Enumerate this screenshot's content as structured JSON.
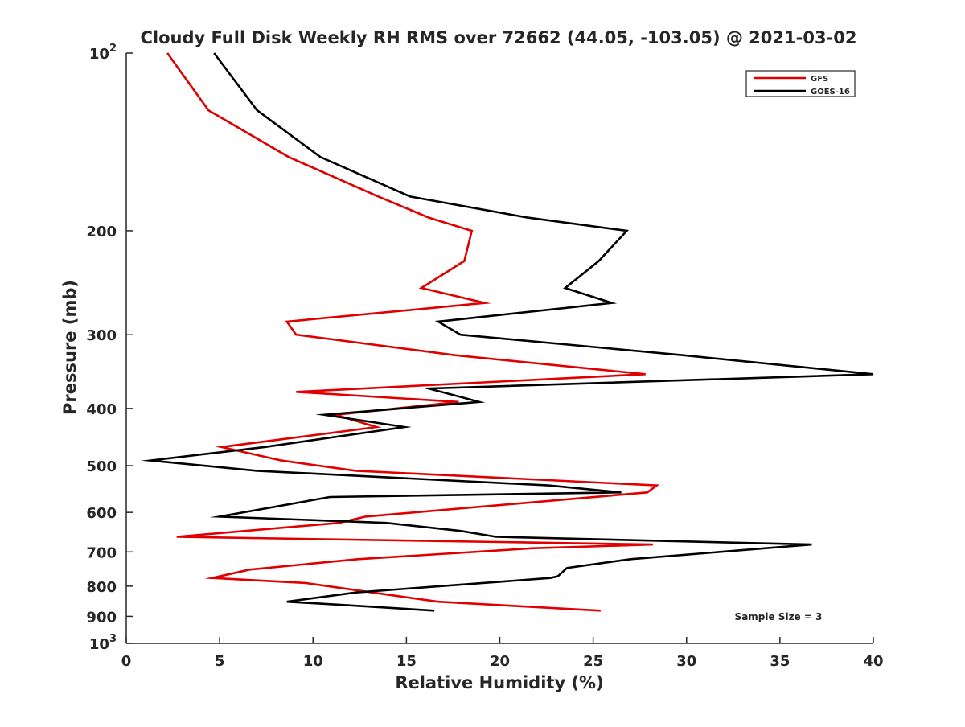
{
  "chart_data": {
    "type": "line",
    "title": "Cloudy Full Disk Weekly RH RMS over 72662 (44.05, -103.05) @ 2021-03-02",
    "xlabel": "Relative Humidity (%)",
    "ylabel": "Pressure (mb)",
    "xlim": [
      0,
      40
    ],
    "ylim": [
      100,
      1000
    ],
    "y_scale": "log",
    "y_reversed": true,
    "grid": false,
    "legend_position": "top-right",
    "x_ticks": [
      "0",
      "5",
      "10",
      "15",
      "20",
      "25",
      "30",
      "35",
      "40"
    ],
    "y_ticks": [
      {
        "value": 100,
        "base": "10",
        "exp": "2",
        "label": ""
      },
      {
        "value": 200,
        "label": "200"
      },
      {
        "value": 300,
        "label": "300"
      },
      {
        "value": 400,
        "label": "400"
      },
      {
        "value": 500,
        "label": "500"
      },
      {
        "value": 600,
        "label": "600"
      },
      {
        "value": 700,
        "label": "700"
      },
      {
        "value": 800,
        "label": "800"
      },
      {
        "value": 900,
        "label": "900"
      },
      {
        "value": 1000,
        "base": "10",
        "exp": "3",
        "label": ""
      }
    ],
    "annotation": "Sample Size = 3",
    "series": [
      {
        "name": "GFS",
        "color": "#e00000",
        "points": [
          [
            2.2,
            100
          ],
          [
            4.4,
            125
          ],
          [
            8.7,
            150
          ],
          [
            13.5,
            175
          ],
          [
            16.2,
            190
          ],
          [
            18.5,
            200
          ],
          [
            18.1,
            225
          ],
          [
            15.8,
            250
          ],
          [
            19.2,
            265
          ],
          [
            8.6,
            285
          ],
          [
            9.1,
            300
          ],
          [
            17.6,
            325
          ],
          [
            27.8,
            350
          ],
          [
            9.1,
            375
          ],
          [
            17.8,
            390
          ],
          [
            11.2,
            410
          ],
          [
            13.4,
            430
          ],
          [
            5.1,
            465
          ],
          [
            8.3,
            490
          ],
          [
            12.3,
            510
          ],
          [
            28.4,
            540
          ],
          [
            27.9,
            555
          ],
          [
            12.8,
            610
          ],
          [
            11.4,
            625
          ],
          [
            2.7,
            660
          ],
          [
            28.2,
            680
          ],
          [
            21.8,
            690
          ],
          [
            12.4,
            720
          ],
          [
            6.6,
            750
          ],
          [
            4.6,
            775
          ],
          [
            9.6,
            790
          ],
          [
            12.6,
            815
          ],
          [
            16.7,
            850
          ],
          [
            25.4,
            880
          ]
        ]
      },
      {
        "name": "GOES-16",
        "color": "#000000",
        "points": [
          [
            4.7,
            100
          ],
          [
            7.0,
            125
          ],
          [
            10.4,
            150
          ],
          [
            15.2,
            175
          ],
          [
            21.5,
            190
          ],
          [
            26.8,
            200
          ],
          [
            25.3,
            225
          ],
          [
            23.5,
            250
          ],
          [
            26.0,
            265
          ],
          [
            16.7,
            285
          ],
          [
            17.9,
            300
          ],
          [
            29.8,
            325
          ],
          [
            40.0,
            350
          ],
          [
            16.2,
            370
          ],
          [
            18.9,
            390
          ],
          [
            10.6,
            410
          ],
          [
            14.9,
            430
          ],
          [
            7.4,
            465
          ],
          [
            1.3,
            490
          ],
          [
            7.0,
            510
          ],
          [
            22.6,
            540
          ],
          [
            26.5,
            555
          ],
          [
            10.9,
            565
          ],
          [
            5.0,
            610
          ],
          [
            13.9,
            625
          ],
          [
            17.9,
            645
          ],
          [
            19.8,
            660
          ],
          [
            36.7,
            680
          ],
          [
            27.0,
            720
          ],
          [
            23.6,
            745
          ],
          [
            23.1,
            770
          ],
          [
            22.7,
            775
          ],
          [
            12.3,
            820
          ],
          [
            8.6,
            850
          ],
          [
            11.4,
            860
          ],
          [
            16.5,
            880
          ]
        ]
      }
    ]
  }
}
